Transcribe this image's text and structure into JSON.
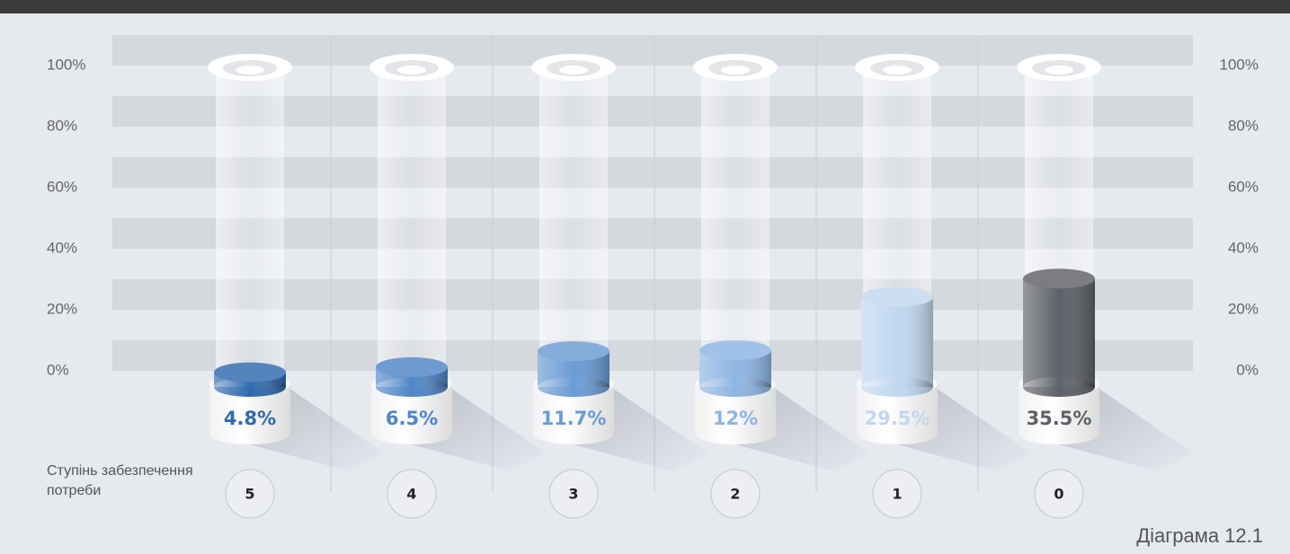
{
  "chart_data": {
    "type": "bar",
    "x_label": "Ступінь забезпечення потреби",
    "caption": "Діаграма 12.1",
    "categories": [
      "5",
      "4",
      "3",
      "2",
      "1",
      "0"
    ],
    "values": [
      4.8,
      6.5,
      11.7,
      12,
      29.5,
      35.5
    ],
    "value_labels": [
      "4.8%",
      "6.5%",
      "11.7%",
      "12%",
      "29.5%",
      "35.5%"
    ],
    "colors": [
      "#2f6aae",
      "#4f86c6",
      "#6a9bd4",
      "#8db5e3",
      "#c0d7ef",
      "#5e6167"
    ],
    "ylim": [
      0,
      100
    ],
    "yticks": [
      {
        "value": 0,
        "label": "0%"
      },
      {
        "value": 20,
        "label": "20%"
      },
      {
        "value": 40,
        "label": "40%"
      },
      {
        "value": 60,
        "label": "60%"
      },
      {
        "value": 80,
        "label": "80%"
      },
      {
        "value": 100,
        "label": "100%"
      }
    ],
    "grid": true
  }
}
